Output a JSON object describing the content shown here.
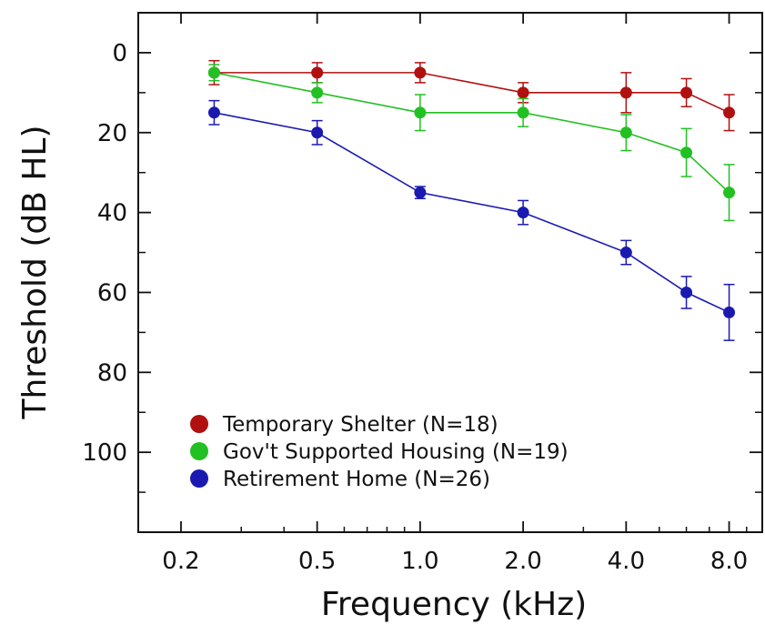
{
  "chart_data": {
    "type": "line",
    "xlabel": "Frequency (kHz)",
    "ylabel": "Threshold (dB HL)",
    "x_scale": "log",
    "xlim": [
      0.15,
      10
    ],
    "ylim": [
      120,
      -10
    ],
    "y_inverted": true,
    "x_ticks": [
      {
        "value": 0.2,
        "label": "0.2"
      },
      {
        "value": 0.5,
        "label": "0.5"
      },
      {
        "value": 1.0,
        "label": "1.0"
      },
      {
        "value": 2.0,
        "label": "2.0"
      },
      {
        "value": 4.0,
        "label": "4.0"
      },
      {
        "value": 8.0,
        "label": "8.0"
      }
    ],
    "y_ticks": [
      {
        "value": 0,
        "label": "0"
      },
      {
        "value": 20,
        "label": "20"
      },
      {
        "value": 40,
        "label": "40"
      },
      {
        "value": 60,
        "label": "60"
      },
      {
        "value": 80,
        "label": "80"
      },
      {
        "value": 100,
        "label": "100"
      }
    ],
    "grid": false,
    "legend_position": "bottom-left",
    "series": [
      {
        "name": "Temporary Shelter (N=18)",
        "color": "#b01010",
        "x": [
          0.25,
          0.5,
          1.0,
          2.0,
          4.0,
          6.0,
          8.0
        ],
        "y": [
          5,
          5,
          5,
          10,
          10,
          10,
          15
        ],
        "error": [
          3,
          2.5,
          2.5,
          2.5,
          5,
          3.5,
          4.5
        ]
      },
      {
        "name": "Gov't Supported Housing (N=19)",
        "color": "#22c022",
        "x": [
          0.25,
          0.5,
          1.0,
          2.0,
          4.0,
          6.0,
          8.0
        ],
        "y": [
          5,
          10,
          15,
          15,
          20,
          25,
          35
        ],
        "error": [
          2,
          2.5,
          4.5,
          3.5,
          4.5,
          6,
          7
        ]
      },
      {
        "name": "Retirement Home (N=26)",
        "color": "#1a1ab0",
        "x": [
          0.25,
          0.5,
          1.0,
          2.0,
          4.0,
          6.0,
          8.0
        ],
        "y": [
          15,
          20,
          35,
          40,
          50,
          60,
          65
        ],
        "error": [
          3,
          3,
          1.5,
          3,
          3,
          4,
          7
        ]
      }
    ]
  }
}
